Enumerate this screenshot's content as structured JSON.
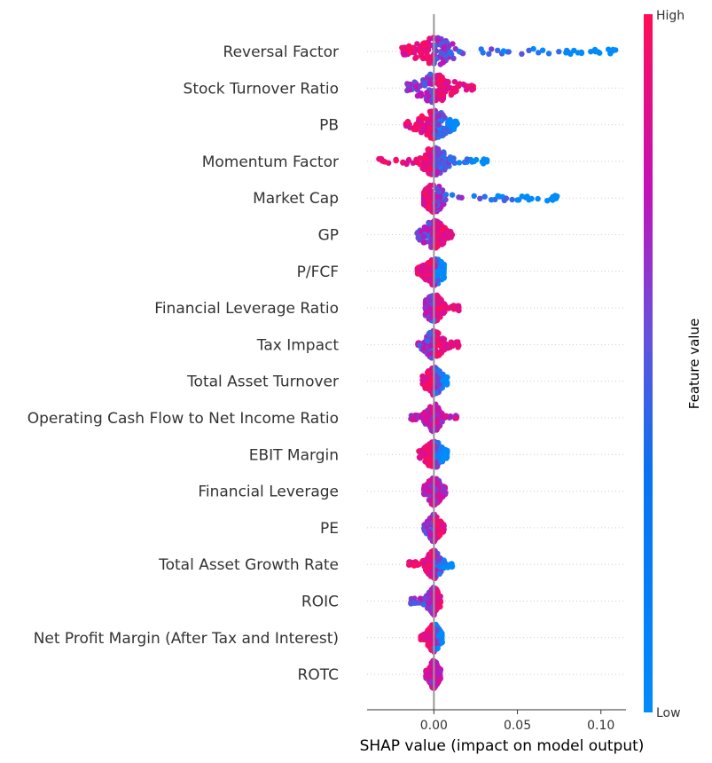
{
  "chart_data": {
    "type": "scatter",
    "subtype": "shap-beeswarm",
    "title": "",
    "xlabel": "SHAP value (impact on model output)",
    "ylabel": "",
    "xlim": [
      -0.04,
      0.115
    ],
    "xticks": [
      0.0,
      0.05,
      0.1
    ],
    "xtick_labels": [
      "0.00",
      "0.05",
      "0.10"
    ],
    "grid": false,
    "colorbar": {
      "title": "Feature value",
      "high_label": "High",
      "low_label": "Low",
      "high_color": "#ff0d57",
      "low_color": "#008bfb"
    },
    "features": [
      {
        "name": "Reversal Factor",
        "min": -0.02,
        "max": 0.11,
        "spread": 0.016,
        "lead": "negative-high"
      },
      {
        "name": "Stock Turnover Ratio",
        "min": -0.016,
        "max": 0.024,
        "spread": 0.015,
        "lead": "positive-high"
      },
      {
        "name": "PB",
        "min": -0.017,
        "max": 0.014,
        "spread": 0.012,
        "lead": "negative-high"
      },
      {
        "name": "Momentum Factor",
        "min": -0.033,
        "max": 0.032,
        "spread": 0.01,
        "lead": "negative-high"
      },
      {
        "name": "Market Cap",
        "min": -0.006,
        "max": 0.074,
        "spread": 0.008,
        "lead": "negative-high"
      },
      {
        "name": "GP",
        "min": -0.01,
        "max": 0.011,
        "spread": 0.009,
        "lead": "positive-high"
      },
      {
        "name": "P/FCF",
        "min": -0.01,
        "max": 0.006,
        "spread": 0.008,
        "lead": "negative-high"
      },
      {
        "name": "Financial Leverage Ratio",
        "min": -0.005,
        "max": 0.015,
        "spread": 0.007,
        "lead": "positive-high"
      },
      {
        "name": "Tax Impact",
        "min": -0.01,
        "max": 0.015,
        "spread": 0.007,
        "lead": "positive-high"
      },
      {
        "name": "Total Asset Turnover",
        "min": -0.007,
        "max": 0.008,
        "spread": 0.007,
        "lead": "negative-high"
      },
      {
        "name": "Operating Cash Flow to Net Income Ratio",
        "min": -0.014,
        "max": 0.014,
        "spread": 0.006,
        "lead": "mixed"
      },
      {
        "name": "EBIT Margin",
        "min": -0.009,
        "max": 0.008,
        "spread": 0.007,
        "lead": "negative-high"
      },
      {
        "name": "Financial Leverage",
        "min": -0.006,
        "max": 0.007,
        "spread": 0.006,
        "lead": "mixed"
      },
      {
        "name": "PE",
        "min": -0.006,
        "max": 0.006,
        "spread": 0.005,
        "lead": "positive-high"
      },
      {
        "name": "Total Asset Growth Rate",
        "min": -0.015,
        "max": 0.011,
        "spread": 0.006,
        "lead": "negative-high"
      },
      {
        "name": "ROIC",
        "min": -0.014,
        "max": 0.004,
        "spread": 0.005,
        "lead": "positive-high"
      },
      {
        "name": "Net Profit Margin (After Tax and Interest)",
        "min": -0.008,
        "max": 0.005,
        "spread": 0.005,
        "lead": "negative-high"
      },
      {
        "name": "ROTC",
        "min": -0.005,
        "max": 0.004,
        "spread": 0.004,
        "lead": "mixed"
      }
    ]
  }
}
